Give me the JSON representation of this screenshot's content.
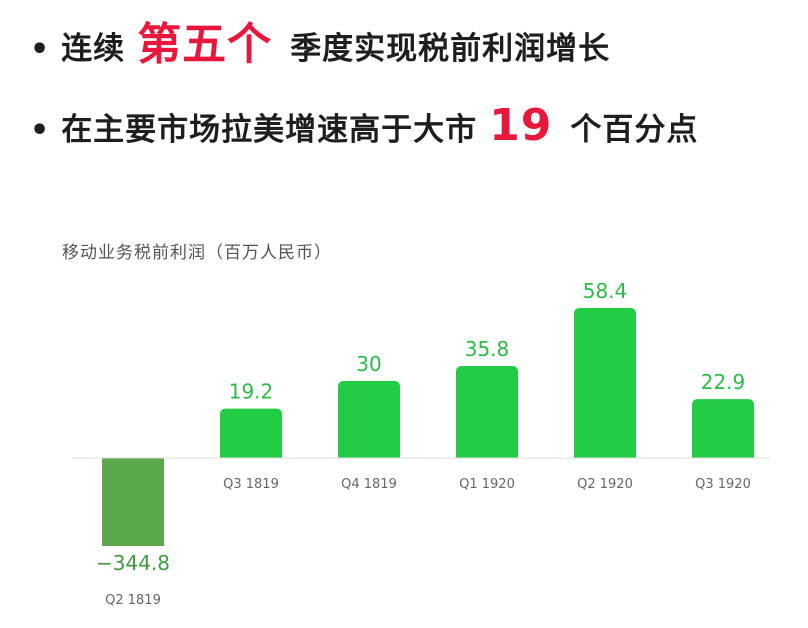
{
  "headline": {
    "line1": {
      "before": "连续",
      "highlight": "第五个",
      "after": "季度实现税前利润增长"
    },
    "line2": {
      "before": "在主要市场拉美增速高于大市",
      "highlight": "19",
      "after": "个百分点"
    },
    "bullet": "•"
  },
  "colors": {
    "highlight": "#e8183c",
    "bar_positive": "#22cc44",
    "bar_negative": "#5aa84a",
    "label_positive": "#2fb84a",
    "label_negative": "#3f9a3f"
  },
  "chart_data": {
    "type": "bar",
    "title": "移动业务税前利润（百万人民币）",
    "categories": [
      "Q2 1819",
      "Q3 1819",
      "Q4 1819",
      "Q1 1920",
      "Q2 1920",
      "Q3 1920"
    ],
    "values": [
      -344.8,
      19.2,
      30,
      35.8,
      58.4,
      22.9
    ],
    "value_labels": [
      "−344.8",
      "19.2",
      "30",
      "35.8",
      "58.4",
      "22.9"
    ],
    "axis_break": true,
    "grid": false,
    "legend": "none"
  }
}
